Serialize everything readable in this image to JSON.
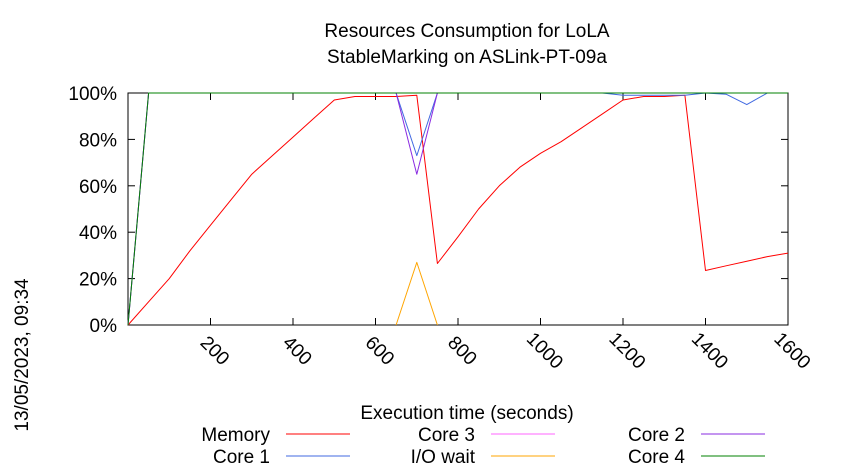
{
  "chart_data": {
    "type": "line",
    "title": "Resources Consumption for LoLA",
    "subtitle": "StableMarking on ASLink-PT-09a",
    "xlabel": "Execution time (seconds)",
    "ylabel": "",
    "side_label": "13/05/2023, 09:34",
    "xlim": [
      0,
      1600
    ],
    "ylim": [
      0,
      100
    ],
    "x_ticks": [
      200,
      400,
      600,
      800,
      1000,
      1200,
      1400,
      1600
    ],
    "y_ticks": [
      {
        "value": 0,
        "label": "0%"
      },
      {
        "value": 20,
        "label": "20%"
      },
      {
        "value": 40,
        "label": "40%"
      },
      {
        "value": 60,
        "label": "60%"
      },
      {
        "value": 80,
        "label": "80%"
      },
      {
        "value": 100,
        "label": "100%"
      }
    ],
    "grid": false,
    "legend_placement": "bottom",
    "series": [
      {
        "name": "Memory",
        "color": "#ff0000",
        "points": [
          [
            0,
            0
          ],
          [
            50,
            10
          ],
          [
            100,
            20
          ],
          [
            150,
            32
          ],
          [
            200,
            43
          ],
          [
            250,
            54
          ],
          [
            300,
            65
          ],
          [
            350,
            73
          ],
          [
            400,
            81
          ],
          [
            450,
            89
          ],
          [
            500,
            97
          ],
          [
            550,
            98.5
          ],
          [
            600,
            98.5
          ],
          [
            650,
            98.5
          ],
          [
            700,
            99
          ],
          [
            750,
            26.5
          ],
          [
            800,
            38
          ],
          [
            850,
            50
          ],
          [
            900,
            60
          ],
          [
            950,
            68
          ],
          [
            1000,
            74
          ],
          [
            1050,
            79
          ],
          [
            1100,
            85
          ],
          [
            1150,
            91
          ],
          [
            1200,
            97
          ],
          [
            1250,
            98.5
          ],
          [
            1300,
            98.5
          ],
          [
            1350,
            99
          ],
          [
            1400,
            23.5
          ],
          [
            1450,
            25.5
          ],
          [
            1500,
            27.5
          ],
          [
            1550,
            29.5
          ],
          [
            1600,
            31
          ]
        ]
      },
      {
        "name": "Core 1",
        "color": "#4169e1",
        "points": [
          [
            0,
            0
          ],
          [
            50,
            100
          ],
          [
            650,
            100
          ],
          [
            700,
            73
          ],
          [
            750,
            100
          ],
          [
            1150,
            100
          ],
          [
            1200,
            99
          ],
          [
            1250,
            99
          ],
          [
            1300,
            99
          ],
          [
            1350,
            99
          ],
          [
            1400,
            100
          ],
          [
            1450,
            99.5
          ],
          [
            1500,
            95
          ],
          [
            1550,
            100
          ],
          [
            1600,
            100
          ]
        ]
      },
      {
        "name": "Core 3",
        "color": "#ff66ff",
        "points": [
          [
            0,
            0
          ],
          [
            50,
            100
          ],
          [
            1600,
            100
          ]
        ]
      },
      {
        "name": "I/O wait",
        "color": "#ffa500",
        "points": [
          [
            650,
            0
          ],
          [
            700,
            27
          ],
          [
            750,
            0
          ]
        ]
      },
      {
        "name": "Core 2",
        "color": "#8a2be2",
        "points": [
          [
            0,
            0
          ],
          [
            50,
            100
          ],
          [
            650,
            100
          ],
          [
            700,
            65
          ],
          [
            750,
            100
          ],
          [
            1600,
            100
          ]
        ]
      },
      {
        "name": "Core 4",
        "color": "#008000",
        "points": [
          [
            0,
            0
          ],
          [
            50,
            100
          ],
          [
            1600,
            100
          ]
        ]
      }
    ]
  }
}
